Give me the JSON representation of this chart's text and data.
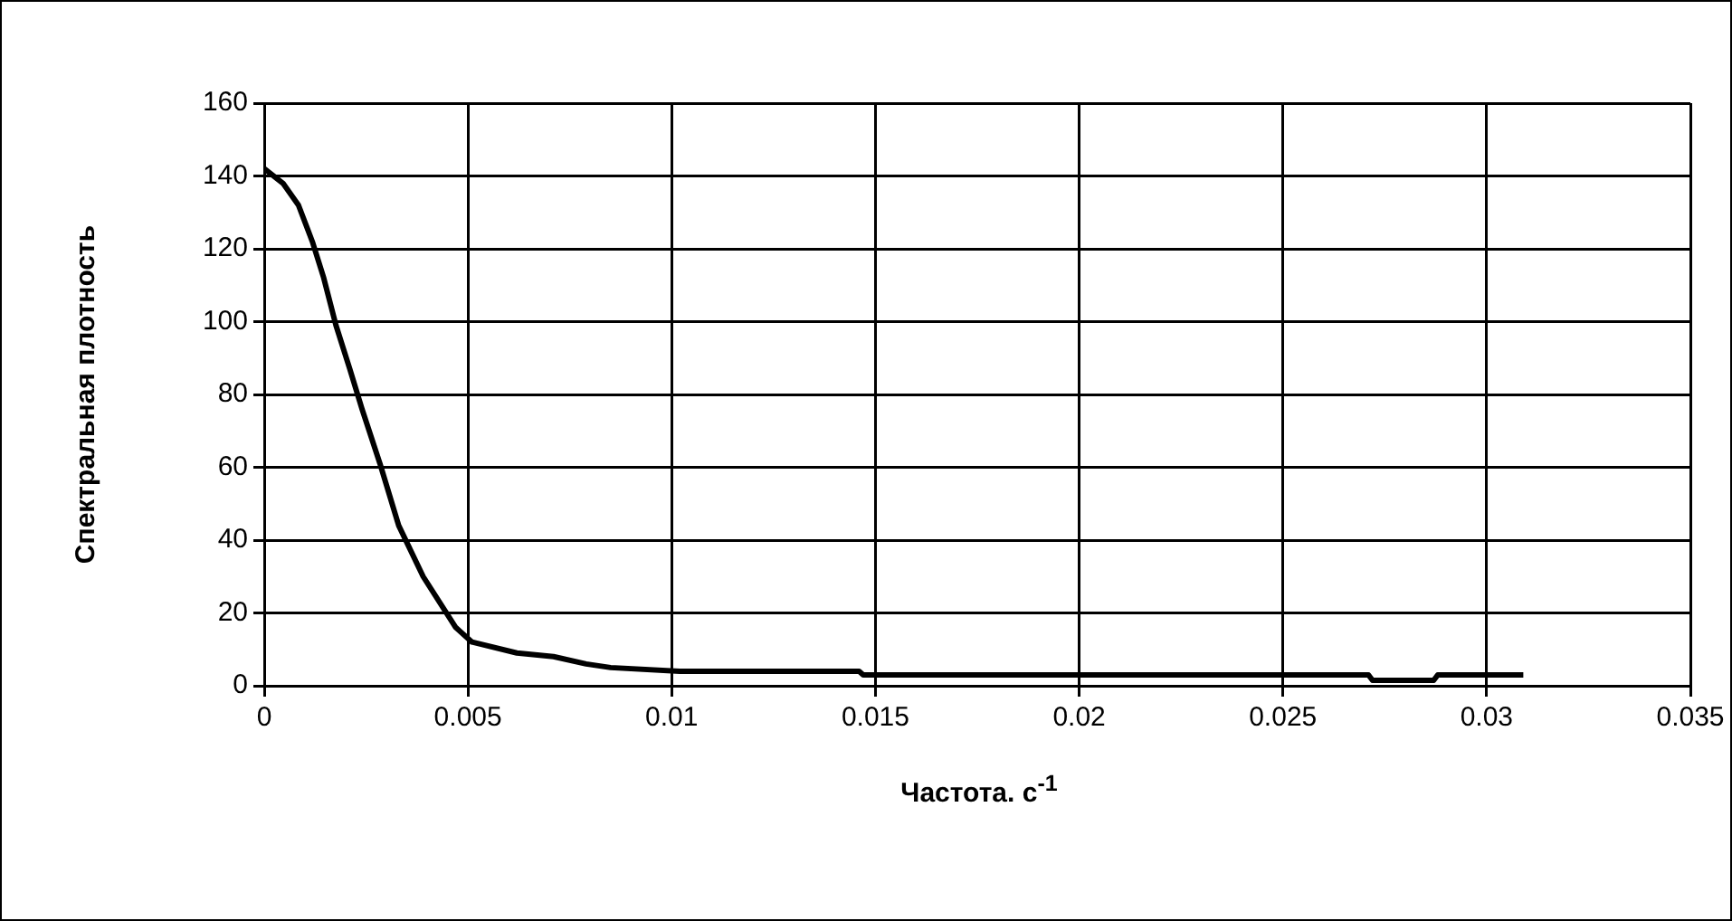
{
  "chart_data": {
    "type": "line",
    "xlabel": "Частота. с$^{-1}$",
    "ylabel": "Спектральная плотность",
    "series": [
      {
        "color": "#000000",
        "x": [
          0,
          0.00046,
          0.00084,
          0.00118,
          0.00146,
          0.00176,
          0.0021,
          0.0024,
          0.00284,
          0.0033,
          0.0039,
          0.0047,
          0.0051,
          0.0062,
          0.0071,
          0.0079,
          0.0085,
          0.0102,
          0.0146,
          0.0147,
          0.0271,
          0.0272,
          0.0287,
          0.0288,
          0.0309
        ],
        "values": [
          142,
          138,
          132,
          122,
          112,
          99,
          87,
          76,
          61,
          44,
          30,
          16,
          12,
          9,
          8,
          6,
          5,
          4,
          4,
          3,
          3,
          1.5,
          1.5,
          3,
          3
        ]
      }
    ],
    "xlim": [
      0,
      0.035
    ],
    "xticks": [
      0,
      0.005,
      0.01,
      0.015,
      0.02,
      0.025,
      0.03,
      0.035
    ],
    "ylim": [
      0,
      160
    ],
    "yticks": [
      0,
      20,
      40,
      60,
      80,
      100,
      120,
      140,
      160
    ],
    "grid": true,
    "legend": false,
    "marker": "none",
    "line_style": "solid"
  }
}
